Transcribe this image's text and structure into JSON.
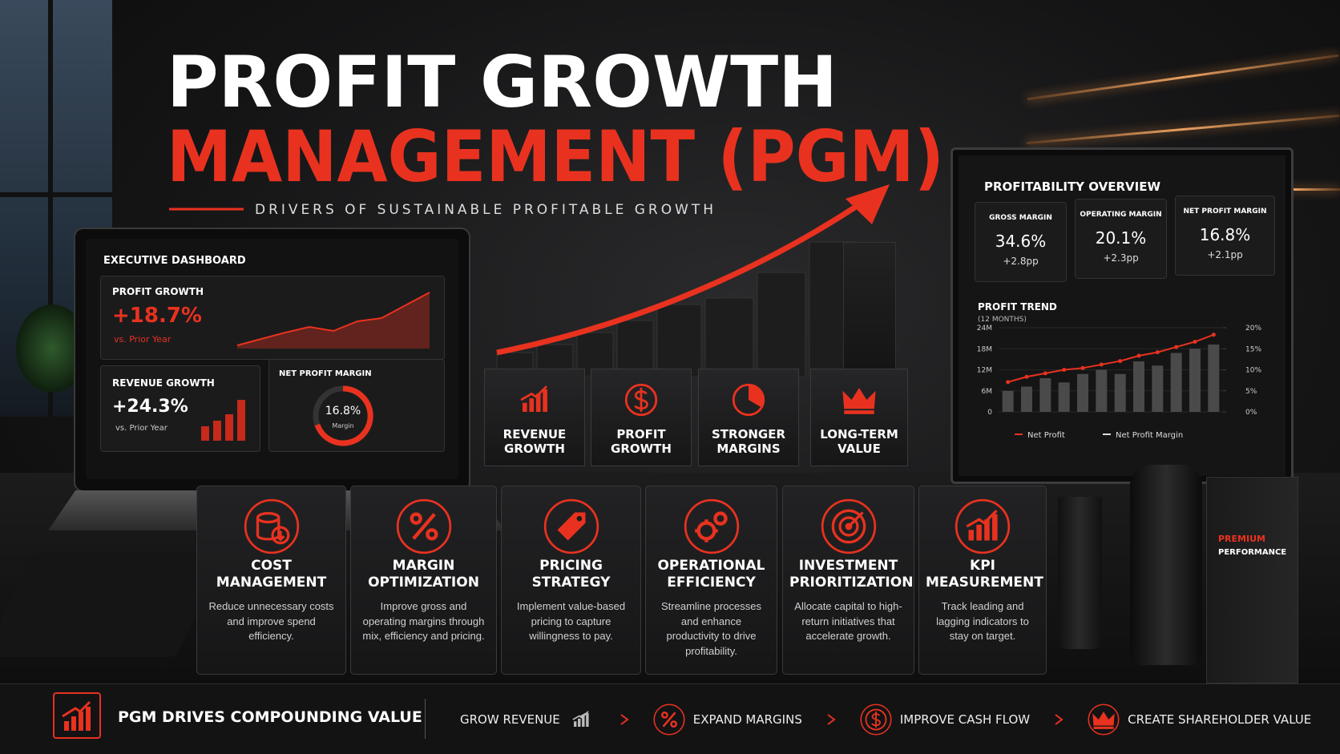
{
  "header": {
    "title_line1": "PROFIT GROWTH",
    "title_line2": "MANAGEMENT (PGM)",
    "subtitle": "DRIVERS OF SUSTAINABLE PROFITABLE GROWTH"
  },
  "laptop": {
    "title": "EXECUTIVE DASHBOARD",
    "profit_growth": {
      "label": "PROFIT GROWTH",
      "value": "+18.7%",
      "note": "vs. Prior Year"
    },
    "revenue_growth": {
      "label": "REVENUE GROWTH",
      "value": "+24.3%",
      "note": "vs. Prior Year"
    },
    "net_profit_margin": {
      "label": "NET PROFIT MARGIN",
      "value": "16.8%",
      "note": "Margin"
    }
  },
  "pillars": [
    "REVENUE GROWTH",
    "PROFIT GROWTH",
    "STRONGER MARGINS",
    "LONG-TERM VALUE"
  ],
  "monitor": {
    "title": "PROFITABILITY OVERVIEW",
    "kpis": [
      {
        "label": "GROSS MARGIN",
        "value": "34.6%",
        "change": "+2.8pp"
      },
      {
        "label": "OPERATING MARGIN",
        "value": "20.1%",
        "change": "+2.3pp"
      },
      {
        "label": "NET PROFIT MARGIN",
        "value": "16.8%",
        "change": "+2.1pp"
      }
    ],
    "trend_title": "PROFIT TREND",
    "trend_subtitle": "(12 MONTHS)"
  },
  "chart_data": {
    "type": "combo",
    "categories": [
      null,
      null,
      null,
      null,
      null,
      null,
      null,
      null,
      null,
      null,
      null,
      null
    ],
    "series": [
      {
        "name": "Net Profit",
        "color": "#e8321f",
        "type": "line",
        "values": [
          8.5,
          10,
          11,
          12,
          12.5,
          13.5,
          14.5,
          16,
          17,
          18.5,
          20,
          22
        ]
      },
      {
        "name": "Net Profit Margin",
        "color": "#4a4a4a",
        "type": "bar",
        "axis": "y2",
        "values": [
          5,
          6,
          8,
          7,
          9,
          10,
          9,
          12,
          11,
          14,
          15,
          16
        ]
      }
    ],
    "ylim": [
      0,
      24
    ],
    "yticks": [
      0,
      {
        "value": 6,
        "label": "6M"
      },
      {
        "value": 12,
        "label": "12M"
      },
      {
        "value": 18,
        "label": "18M"
      },
      {
        "value": 24,
        "label": "24M"
      }
    ],
    "y2lim": [
      0,
      20
    ],
    "y2ticks": [
      {
        "value": 0,
        "label": "0%"
      },
      {
        "value": 5,
        "label": "5%"
      },
      {
        "value": 10,
        "label": "10%"
      },
      {
        "value": 15,
        "label": "15%"
      },
      {
        "value": 20,
        "label": "20%"
      }
    ]
  },
  "cards": [
    {
      "title": "COST MANAGEMENT",
      "text": "Reduce unnecessary costs and improve spend efficiency."
    },
    {
      "title": "MARGIN OPTIMIZATION",
      "text": "Improve gross and operating margins through mix, efficiency and pricing."
    },
    {
      "title": "PRICING STRATEGY",
      "text": "Implement value-based pricing to capture willingness to pay."
    },
    {
      "title": "OPERATIONAL EFFICIENCY",
      "text": "Streamline processes and enhance productivity to drive profitability."
    },
    {
      "title": "INVESTMENT PRIORITIZATION",
      "text": "Allocate capital to high-return initiatives that accelerate growth."
    },
    {
      "title": "KPI MEASUREMENT",
      "text": "Track leading and lagging indicators to stay on target."
    }
  ],
  "footer": {
    "headline": "PGM DRIVES COMPOUNDING VALUE",
    "steps": [
      "GROW REVENUE",
      "EXPAND MARGINS",
      "IMPROVE CASH FLOW",
      "CREATE SHAREHOLDER VALUE"
    ]
  },
  "product": {
    "line1": "PREMIUM",
    "line2": "PERFORMANCE"
  }
}
